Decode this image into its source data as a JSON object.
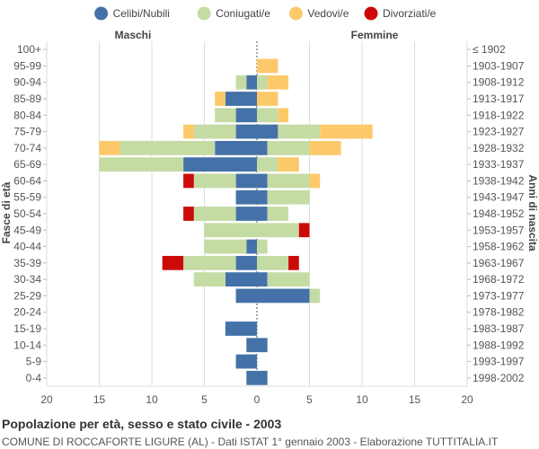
{
  "chart_data": {
    "type": "bar",
    "title": "Popolazione per età, sesso e stato civile - 2003",
    "subtitle": "COMUNE DI ROCCAFORTE LIGURE (AL) - Dati ISTAT 1° gennaio 2003 - Elaborazione TUTTITALIA.IT",
    "left_label": "Maschi",
    "right_label": "Femmine",
    "ylabel_left": "Fasce di età",
    "ylabel_right": "Anni di nascita",
    "xlim": [
      -20,
      20
    ],
    "xticks": [
      -20,
      -15,
      -10,
      -5,
      0,
      5,
      10,
      15,
      20
    ],
    "xtick_labels": [
      "20",
      "15",
      "10",
      "5",
      "0",
      "5",
      "10",
      "15",
      "20"
    ],
    "legend_position": "top-center",
    "series_names": [
      "Celibi/Nubili",
      "Coniugati/e",
      "Vedovi/e",
      "Divorziati/e"
    ],
    "colors": {
      "Celibi/Nubili": "#4472a8",
      "Coniugati/e": "#c5dba4",
      "Vedovi/e": "#fcc96a",
      "Divorziati/e": "#cc0a0a"
    },
    "categories": [
      "100+",
      "95-99",
      "90-94",
      "85-89",
      "80-84",
      "75-79",
      "70-74",
      "65-69",
      "60-64",
      "55-59",
      "50-54",
      "45-49",
      "40-44",
      "35-39",
      "30-34",
      "25-29",
      "20-24",
      "15-19",
      "10-14",
      "5-9",
      "0-4"
    ],
    "birth_years": [
      "≤ 1902",
      "1903-1907",
      "1908-1912",
      "1913-1917",
      "1918-1922",
      "1923-1927",
      "1928-1932",
      "1933-1937",
      "1938-1942",
      "1943-1947",
      "1948-1952",
      "1953-1957",
      "1958-1962",
      "1963-1967",
      "1968-1972",
      "1973-1977",
      "1978-1982",
      "1983-1987",
      "1988-1992",
      "1993-1997",
      "1998-2002"
    ],
    "males": {
      "Celibi/Nubili": [
        0,
        0,
        1,
        3,
        2,
        2,
        4,
        7,
        2,
        2,
        2,
        0,
        1,
        2,
        3,
        2,
        0,
        3,
        1,
        2,
        1
      ],
      "Coniugati/e": [
        0,
        0,
        1,
        0,
        2,
        4,
        9,
        8,
        4,
        0,
        4,
        5,
        4,
        5,
        3,
        0,
        0,
        0,
        0,
        0,
        0
      ],
      "Vedovi/e": [
        0,
        0,
        0,
        1,
        0,
        1,
        2,
        0,
        0,
        0,
        0,
        0,
        0,
        0,
        0,
        0,
        0,
        0,
        0,
        0,
        0
      ],
      "Divorziati/e": [
        0,
        0,
        0,
        0,
        0,
        0,
        0,
        0,
        1,
        0,
        1,
        0,
        0,
        2,
        0,
        0,
        0,
        0,
        0,
        0,
        0
      ]
    },
    "females": {
      "Celibi/Nubili": [
        0,
        0,
        0,
        0,
        0,
        2,
        1,
        0,
        1,
        1,
        1,
        0,
        0,
        0,
        1,
        5,
        0,
        0,
        1,
        0,
        1
      ],
      "Coniugati/e": [
        0,
        0,
        1,
        0,
        2,
        4,
        4,
        2,
        4,
        4,
        2,
        4,
        1,
        3,
        4,
        1,
        0,
        0,
        0,
        0,
        0
      ],
      "Vedovi/e": [
        0,
        2,
        2,
        2,
        1,
        5,
        3,
        2,
        1,
        0,
        0,
        0,
        0,
        0,
        0,
        0,
        0,
        0,
        0,
        0,
        0
      ],
      "Divorziati/e": [
        0,
        0,
        0,
        0,
        0,
        0,
        0,
        0,
        0,
        0,
        0,
        1,
        0,
        1,
        0,
        0,
        0,
        0,
        0,
        0,
        0
      ]
    }
  }
}
